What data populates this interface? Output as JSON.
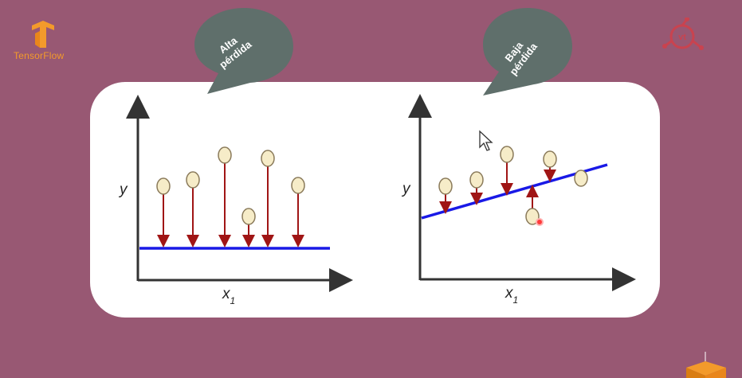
{
  "header": {
    "tensorflow_logo_text": "TensorFlow"
  },
  "bubbles": {
    "left": "Alta\npérdida",
    "right": "Baja\npérdida"
  },
  "plots": {
    "left": {
      "ylabel": "y",
      "xlabel": "x",
      "xlabel_sub": "1"
    },
    "right": {
      "ylabel": "y",
      "xlabel": "x",
      "xlabel_sub": "1"
    }
  },
  "colors": {
    "background": "#985873",
    "bubble": "#5f6f6b",
    "fit_line": "#1919e6",
    "residual": "#a01515",
    "point_fill": "#f6ecc8",
    "point_stroke": "#8a7a5a"
  }
}
